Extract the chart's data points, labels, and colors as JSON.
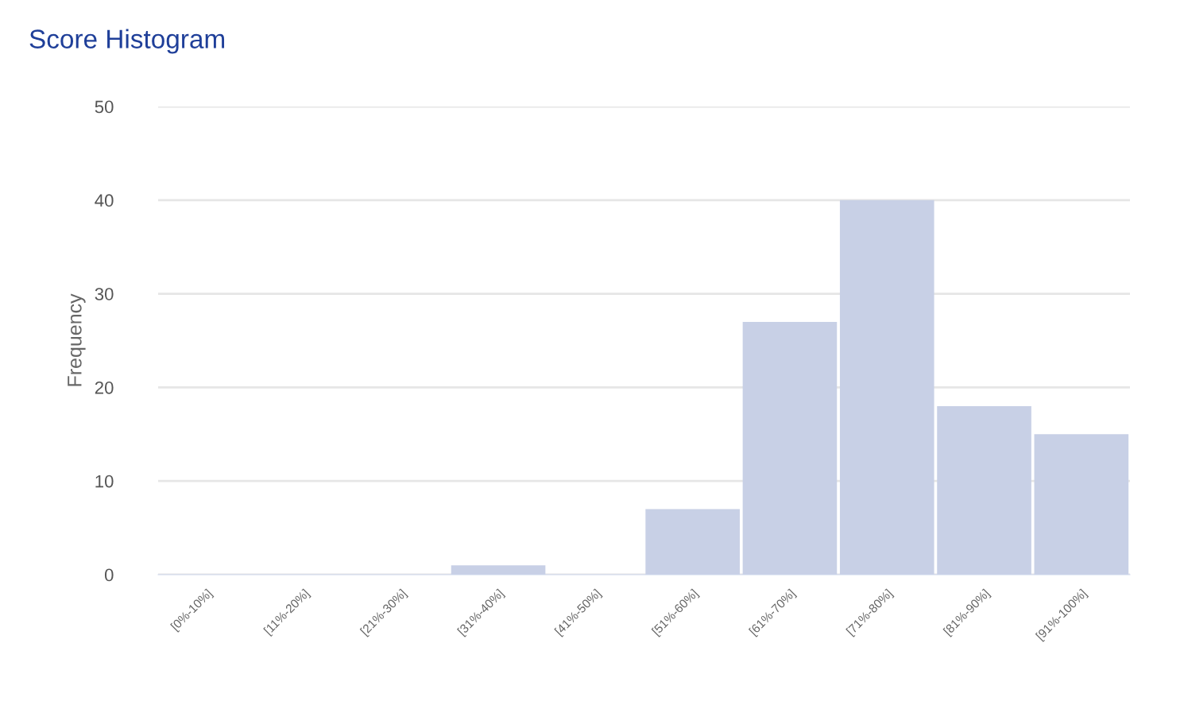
{
  "chart_data": {
    "type": "bar",
    "title": "Score Histogram",
    "ylabel": "Frequency",
    "categories": [
      "[0%-10%]",
      "[11%-20%]",
      "[21%-30%]",
      "[31%-40%]",
      "[41%-50%]",
      "[51%-60%]",
      "[61%-70%]",
      "[71%-80%]",
      "[81%-90%]",
      "[91%-100%]"
    ],
    "values": [
      0,
      0,
      0,
      1,
      0,
      7,
      27,
      40,
      18,
      15
    ],
    "color": "#c8d0e6",
    "ylim": [
      0,
      50
    ],
    "yticks": [
      0,
      10,
      20,
      30,
      40,
      50
    ],
    "grid": "y",
    "legend": false
  }
}
